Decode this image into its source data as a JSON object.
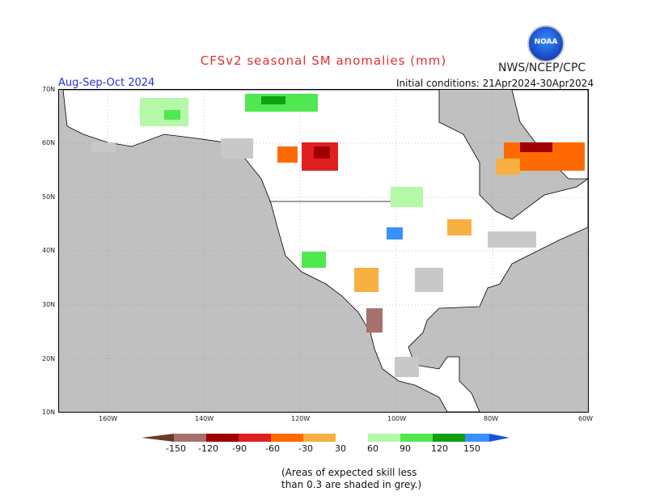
{
  "title": "CFSv2 seasonal SM anomalies (mm)",
  "agency": "NWS/NCEP/CPC",
  "logo_text": "NOAA",
  "period": "Aug-Sep-Oct 2024",
  "initial_conditions": "Initial conditions: 21Apr2024-30Apr2024",
  "lat_labels": [
    "70N",
    "60N",
    "50N",
    "40N",
    "30N",
    "20N",
    "10N"
  ],
  "lon_labels": [
    "160W",
    "140W",
    "120W",
    "100W",
    "80W",
    "60W"
  ],
  "colorbar": {
    "labels": [
      "-150",
      "-120",
      "-90",
      "-60",
      "-30",
      "30",
      "60",
      "90",
      "120",
      "150"
    ],
    "colors": [
      "#6b3a2a",
      "#a8706a",
      "#a00000",
      "#e02020",
      "#ff6a00",
      "#f8b040",
      "#ffffff",
      "#b4f8a8",
      "#50e850",
      "#10a010",
      "#3a90ff",
      "#1a50e0"
    ]
  },
  "note_line1": "(Areas of expected skill less",
  "note_line2": "than 0.3 are shaded in grey.)",
  "map_colors": {
    "ocean": "#c0c0c0",
    "land": "#ffffff",
    "low_skill": "#c8c8c8"
  }
}
